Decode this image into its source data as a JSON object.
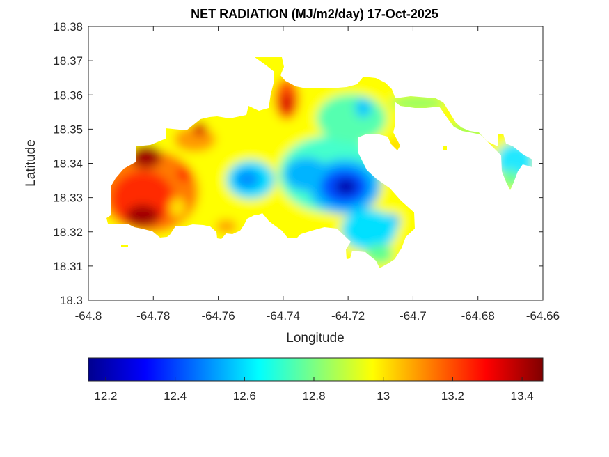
{
  "chart_data": {
    "type": "heatmap",
    "title": "NET RADIATION (MJ/m2/day) 17-Oct-2025",
    "xlabel": "Longitude",
    "ylabel": "Latitude",
    "xlim": [
      -64.8,
      -64.66
    ],
    "ylim": [
      18.3,
      18.38
    ],
    "xticks": [
      "-64.8",
      "-64.78",
      "-64.76",
      "-64.74",
      "-64.72",
      "-64.7",
      "-64.68",
      "-64.66"
    ],
    "yticks": [
      "18.3",
      "18.31",
      "18.32",
      "18.33",
      "18.34",
      "18.35",
      "18.36",
      "18.37",
      "18.38"
    ],
    "colorbar": {
      "orientation": "horizontal",
      "colormap": "jet",
      "range": [
        12.15,
        13.46
      ],
      "ticks": [
        "12.2",
        "12.4",
        "12.6",
        "12.8",
        "13",
        "13.2",
        "13.4"
      ]
    },
    "grid": false,
    "high_regions": [
      {
        "lon": -64.783,
        "lat": 18.341,
        "value": 13.4
      },
      {
        "lon": -64.782,
        "lat": 18.325,
        "value": 13.4
      },
      {
        "lon": -64.765,
        "lat": 18.35,
        "value": 13.3
      },
      {
        "lon": -64.74,
        "lat": 18.355,
        "value": 13.3
      }
    ],
    "low_regions": [
      {
        "lon": -64.72,
        "lat": 18.332,
        "value": 12.2
      },
      {
        "lon": -64.75,
        "lat": 18.335,
        "value": 12.5
      },
      {
        "lon": -64.716,
        "lat": 18.357,
        "value": 12.6
      },
      {
        "lon": -64.672,
        "lat": 18.339,
        "value": 12.7
      }
    ]
  }
}
